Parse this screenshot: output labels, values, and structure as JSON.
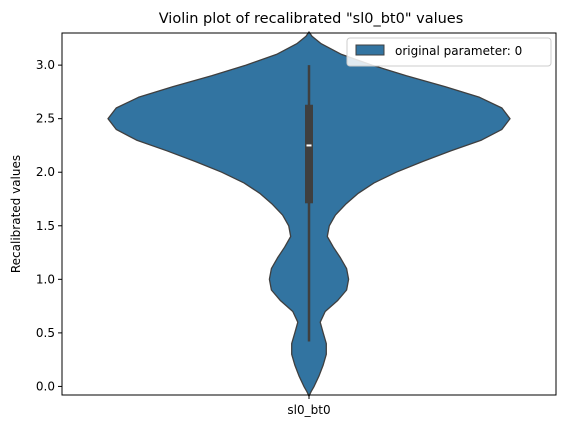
{
  "chart_data": {
    "type": "violin",
    "title": "Violin plot of recalibrated \"sl0_bt0\" values",
    "xlabel": "",
    "ylabel": "Recalibrated values",
    "categories": [
      "sl0_bt0"
    ],
    "ylim": [
      -0.08,
      3.3
    ],
    "yticks": [
      0.0,
      0.5,
      1.0,
      1.5,
      2.0,
      2.5,
      3.0
    ],
    "ytick_labels": [
      "0.0",
      "0.5",
      "1.0",
      "1.5",
      "2.0",
      "2.5",
      "3.0"
    ],
    "legend": {
      "entries": [
        "original parameter: 0"
      ],
      "placement": "top-right"
    },
    "colors": {
      "violin_fill": "#3274a1",
      "violin_edge": "#3f3f3f",
      "box": "#3f3f3f",
      "median": "#ffffff"
    },
    "series": [
      {
        "name": "original parameter: 0",
        "category": "sl0_bt0",
        "box": {
          "whisker_low": 0.42,
          "q1": 1.71,
          "median": 2.25,
          "q3": 2.63,
          "whisker_high": 3.0
        },
        "density_profile": {
          "y": [
            3.31,
            3.27,
            3.2,
            3.1,
            3.0,
            2.9,
            2.8,
            2.7,
            2.6,
            2.5,
            2.4,
            2.3,
            2.2,
            2.1,
            2.0,
            1.9,
            1.8,
            1.7,
            1.6,
            1.5,
            1.4,
            1.3,
            1.2,
            1.1,
            1.0,
            0.9,
            0.8,
            0.7,
            0.6,
            0.5,
            0.4,
            0.3,
            0.2,
            0.1,
            0.0,
            -0.05,
            -0.09
          ],
          "halfwidth": [
            0.0,
            0.015,
            0.06,
            0.16,
            0.31,
            0.48,
            0.67,
            0.84,
            0.95,
            0.99,
            0.95,
            0.85,
            0.7,
            0.56,
            0.43,
            0.32,
            0.24,
            0.18,
            0.13,
            0.1,
            0.09,
            0.12,
            0.155,
            0.185,
            0.195,
            0.185,
            0.14,
            0.08,
            0.055,
            0.07,
            0.085,
            0.085,
            0.07,
            0.05,
            0.025,
            0.01,
            0.0
          ]
        }
      }
    ]
  }
}
